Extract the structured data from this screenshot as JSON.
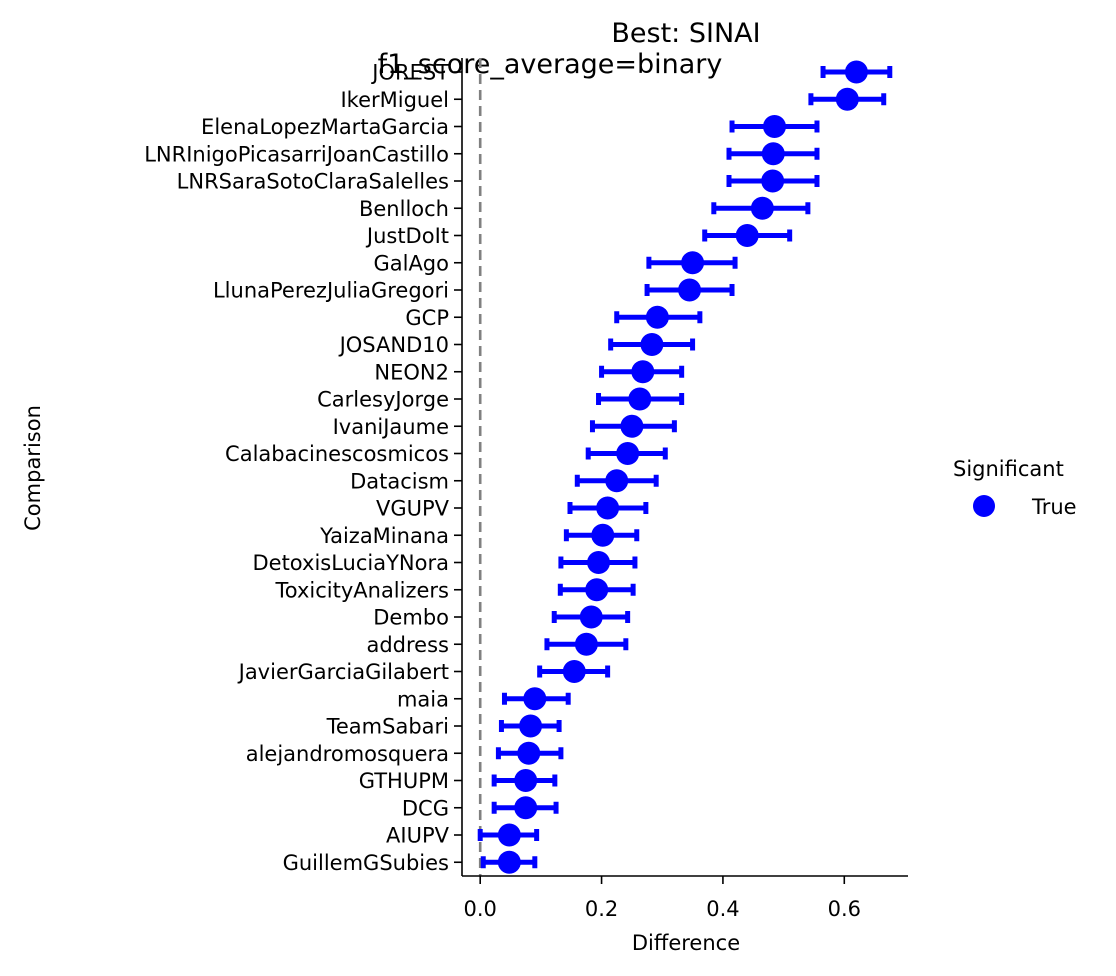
{
  "chart_data": {
    "type": "scatter",
    "title": "Best: SINAI",
    "subtitle": "f1_score_average=binary",
    "xlabel": "Difference",
    "ylabel": "Comparison",
    "xlim": [
      -0.03,
      0.705
    ],
    "xticks": [
      "0.0",
      "0.2",
      "0.4",
      "0.6"
    ],
    "reference_line": {
      "x": 0,
      "style": "dashed",
      "color": "#808080"
    },
    "grid": false,
    "legend": {
      "title": "Significant",
      "entries": [
        "True"
      ],
      "placement": "right"
    },
    "series": [
      {
        "name": "True",
        "color": "#0000ff",
        "points": [
          {
            "label": "JOREST",
            "value": 0.62,
            "low": 0.565,
            "high": 0.675
          },
          {
            "label": "IkerMiguel",
            "value": 0.605,
            "low": 0.545,
            "high": 0.665
          },
          {
            "label": "ElenaLopezMartaGarcia",
            "value": 0.485,
            "low": 0.415,
            "high": 0.555
          },
          {
            "label": "LNRInigoPicasarriJoanCastillo",
            "value": 0.483,
            "low": 0.41,
            "high": 0.555
          },
          {
            "label": "LNRSaraSotoClaraSalelles",
            "value": 0.482,
            "low": 0.41,
            "high": 0.555
          },
          {
            "label": "Benlloch",
            "value": 0.465,
            "low": 0.385,
            "high": 0.54
          },
          {
            "label": "JustDoIt",
            "value": 0.44,
            "low": 0.37,
            "high": 0.51
          },
          {
            "label": "GalAgo",
            "value": 0.35,
            "low": 0.278,
            "high": 0.42
          },
          {
            "label": "LlunaPerezJuliaGregori",
            "value": 0.345,
            "low": 0.275,
            "high": 0.415
          },
          {
            "label": "GCP",
            "value": 0.292,
            "low": 0.225,
            "high": 0.362
          },
          {
            "label": "JOSAND10",
            "value": 0.283,
            "low": 0.215,
            "high": 0.35
          },
          {
            "label": "NEON2",
            "value": 0.268,
            "low": 0.2,
            "high": 0.332
          },
          {
            "label": "CarlesyJorge",
            "value": 0.263,
            "low": 0.195,
            "high": 0.332
          },
          {
            "label": "IvaniJaume",
            "value": 0.25,
            "low": 0.185,
            "high": 0.32
          },
          {
            "label": "Calabacinescosmicos",
            "value": 0.243,
            "low": 0.178,
            "high": 0.305
          },
          {
            "label": "Datacism",
            "value": 0.225,
            "low": 0.16,
            "high": 0.29
          },
          {
            "label": "VGUPV",
            "value": 0.21,
            "low": 0.148,
            "high": 0.273
          },
          {
            "label": "YaizaMinana",
            "value": 0.202,
            "low": 0.142,
            "high": 0.258
          },
          {
            "label": "DetoxisLuciaYNora",
            "value": 0.195,
            "low": 0.133,
            "high": 0.255
          },
          {
            "label": "ToxicityAnalizers",
            "value": 0.192,
            "low": 0.132,
            "high": 0.252
          },
          {
            "label": "Dembo",
            "value": 0.183,
            "low": 0.122,
            "high": 0.243
          },
          {
            "label": "address",
            "value": 0.175,
            "low": 0.11,
            "high": 0.24
          },
          {
            "label": "JavierGarciaGilabert",
            "value": 0.155,
            "low": 0.098,
            "high": 0.21
          },
          {
            "label": "maia",
            "value": 0.09,
            "low": 0.04,
            "high": 0.145
          },
          {
            "label": "TeamSabari",
            "value": 0.083,
            "low": 0.035,
            "high": 0.13
          },
          {
            "label": "alejandromosquera",
            "value": 0.08,
            "low": 0.03,
            "high": 0.133
          },
          {
            "label": "GTHUPM",
            "value": 0.075,
            "low": 0.023,
            "high": 0.123
          },
          {
            "label": "DCG",
            "value": 0.075,
            "low": 0.023,
            "high": 0.125
          },
          {
            "label": "AIUPV",
            "value": 0.048,
            "low": 0.0,
            "high": 0.093
          },
          {
            "label": "GuillemGSubies",
            "value": 0.048,
            "low": 0.005,
            "high": 0.09
          }
        ]
      }
    ]
  }
}
